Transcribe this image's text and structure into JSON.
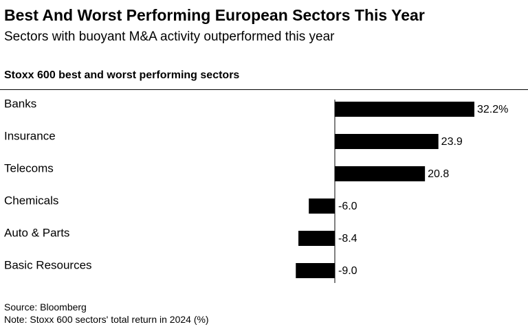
{
  "header": {
    "title": "Best And Worst Performing European Sectors This Year",
    "subtitle": "Sectors with buoyant M&A activity outperformed this year"
  },
  "chart_heading": "Stoxx 600 best and worst performing sectors",
  "chart_data": {
    "type": "bar",
    "orientation": "horizontal",
    "title": "Stoxx 600 best and worst performing sectors",
    "categories": [
      "Banks",
      "Insurance",
      "Telecoms",
      "Chemicals",
      "Auto & Parts",
      "Basic Resources"
    ],
    "values": [
      32.2,
      23.9,
      20.8,
      -6.0,
      -8.4,
      -9.0
    ],
    "value_labels": [
      "32.2%",
      "23.9",
      "20.8",
      "-6.0",
      "-8.4",
      "-9.0"
    ],
    "unit": "%",
    "xlim": [
      -9.0,
      32.2
    ],
    "bar_color": "#000000",
    "grid": false,
    "legend": "none"
  },
  "footer": {
    "source": "Source: Bloomberg",
    "note": "Note: Stoxx 600 sectors' total return in 2024 (%)"
  }
}
